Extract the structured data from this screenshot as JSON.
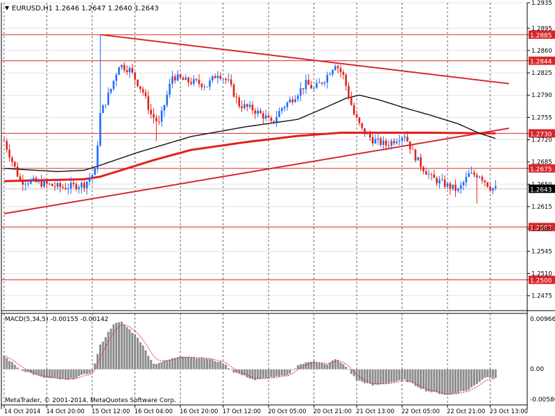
{
  "header": {
    "symbol_info": "EURUSD,H1  1.2646 1.2647 1.2640 1.2643"
  },
  "macd": {
    "label": "MACD(5,34,5) -0.00155 -0.00142",
    "scale": [
      "0.00966",
      "0.00",
      "-0.00586"
    ],
    "ylim": [
      -0.00586,
      0.00966
    ]
  },
  "footer": {
    "copyright": "MetaTrader, © 2001-2014, MetaQuotes Software Corp."
  },
  "colors": {
    "bull": "#1e6bff",
    "bear": "#e0201a",
    "level_line": "#d8262a",
    "ma_slow": "#e0201a",
    "ma_fast": "#111111",
    "histogram": "#8c8c8c",
    "signal": "#e0201a",
    "current_price_box": "#000000"
  },
  "chart_data": [
    {
      "type": "candlestick",
      "title": "EURUSD,H1",
      "ylim": [
        1.2455,
        1.2935
      ],
      "y_ticks": [
        "1.2935",
        "1.2895",
        "1.2860",
        "1.2825",
        "1.2790",
        "1.2755",
        "1.2720",
        "1.2685",
        "1.2650",
        "1.2615",
        "1.2580",
        "1.2545",
        "1.2510",
        "1.2475"
      ],
      "x_ticks": [
        "14 Oct 2014",
        "14 Oct 20:00",
        "15 Oct 12:00",
        "16 Oct 04:00",
        "16 Oct 20:00",
        "17 Oct 12:00",
        "20 Oct 05:00",
        "20 Oct 21:00",
        "21 Oct 13:00",
        "22 Oct 05:00",
        "22 Oct 21:00",
        "23 Oct 13:00"
      ],
      "horizontal_levels": [
        {
          "price": 1.2885,
          "label": "1.2885"
        },
        {
          "price": 1.2844,
          "label": "1.2844"
        },
        {
          "price": 1.273,
          "label": "1.2730"
        },
        {
          "price": 1.2675,
          "label": "1.2675"
        },
        {
          "price": 1.2583,
          "label": "1.2583"
        },
        {
          "price": 1.25,
          "label": "1.2500"
        }
      ],
      "current_price": {
        "price": 1.2643,
        "label": "1.2643"
      },
      "trendlines": [
        {
          "name": "upper",
          "from": {
            "bar": 36,
            "price": 1.2885
          },
          "to": {
            "bar": 189,
            "price": 1.2808
          }
        },
        {
          "name": "lower",
          "from": {
            "bar": 0,
            "price": 1.2604
          },
          "to": {
            "bar": 189,
            "price": 1.2738
          }
        }
      ],
      "price_anchors": [
        [
          0,
          1.2718
        ],
        [
          6,
          1.2655
        ],
        [
          10,
          1.2655
        ],
        [
          18,
          1.2648
        ],
        [
          22,
          1.2645
        ],
        [
          30,
          1.265
        ],
        [
          34,
          1.267
        ],
        [
          36,
          1.276
        ],
        [
          40,
          1.28
        ],
        [
          43,
          1.2838
        ],
        [
          47,
          1.283
        ],
        [
          52,
          1.2795
        ],
        [
          55,
          1.276
        ],
        [
          58,
          1.2745
        ],
        [
          63,
          1.282
        ],
        [
          68,
          1.2812
        ],
        [
          72,
          1.281
        ],
        [
          76,
          1.2805
        ],
        [
          80,
          1.2825
        ],
        [
          84,
          1.281
        ],
        [
          88,
          1.2775
        ],
        [
          93,
          1.2768
        ],
        [
          98,
          1.2755
        ],
        [
          100,
          1.2745
        ],
        [
          104,
          1.277
        ],
        [
          108,
          1.2785
        ],
        [
          113,
          1.2808
        ],
        [
          116,
          1.28
        ],
        [
          120,
          1.2815
        ],
        [
          124,
          1.284
        ],
        [
          127,
          1.282
        ],
        [
          131,
          1.276
        ],
        [
          134,
          1.2735
        ],
        [
          138,
          1.272
        ],
        [
          143,
          1.2712
        ],
        [
          147,
          1.2722
        ],
        [
          150,
          1.2728
        ],
        [
          153,
          1.27
        ],
        [
          156,
          1.268
        ],
        [
          160,
          1.266
        ],
        [
          165,
          1.265
        ],
        [
          170,
          1.264
        ],
        [
          174,
          1.2665
        ],
        [
          178,
          1.2665
        ],
        [
          182,
          1.2645
        ],
        [
          184,
          1.2643
        ]
      ],
      "ma_fast_anchors": [
        [
          0,
          1.2675
        ],
        [
          20,
          1.267
        ],
        [
          30,
          1.2672
        ],
        [
          36,
          1.268
        ],
        [
          50,
          1.27
        ],
        [
          70,
          1.2725
        ],
        [
          90,
          1.274
        ],
        [
          110,
          1.2752
        ],
        [
          120,
          1.277
        ],
        [
          128,
          1.2785
        ],
        [
          133,
          1.279
        ],
        [
          140,
          1.2783
        ],
        [
          150,
          1.277
        ],
        [
          160,
          1.2758
        ],
        [
          170,
          1.2745
        ],
        [
          178,
          1.273
        ],
        [
          184,
          1.2722
        ]
      ],
      "ma_slow_anchors": [
        [
          0,
          1.2655
        ],
        [
          10,
          1.2656
        ],
        [
          20,
          1.2657
        ],
        [
          30,
          1.2658
        ],
        [
          36,
          1.2662
        ],
        [
          46,
          1.2675
        ],
        [
          56,
          1.2688
        ],
        [
          70,
          1.2704
        ],
        [
          90,
          1.2716
        ],
        [
          110,
          1.2726
        ],
        [
          126,
          1.2731
        ],
        [
          140,
          1.2731
        ],
        [
          160,
          1.2731
        ],
        [
          184,
          1.273
        ]
      ],
      "macd_histogram_anchors": [
        [
          0,
          0.0025
        ],
        [
          6,
          0.0
        ],
        [
          14,
          -0.0015
        ],
        [
          24,
          -0.002
        ],
        [
          33,
          -0.0005
        ],
        [
          36,
          0.0045
        ],
        [
          41,
          0.0085
        ],
        [
          44,
          0.0088
        ],
        [
          50,
          0.006
        ],
        [
          56,
          0.001
        ],
        [
          60,
          0.0015
        ],
        [
          66,
          0.0025
        ],
        [
          76,
          0.002
        ],
        [
          82,
          0.0012
        ],
        [
          86,
          -0.0005
        ],
        [
          94,
          -0.002
        ],
        [
          100,
          -0.0015
        ],
        [
          106,
          -0.0012
        ],
        [
          110,
          0.0008
        ],
        [
          116,
          0.0016
        ],
        [
          121,
          0.0008
        ],
        [
          124,
          0.002
        ],
        [
          128,
          0.0005
        ],
        [
          132,
          -0.002
        ],
        [
          138,
          -0.003
        ],
        [
          150,
          -0.002
        ],
        [
          158,
          -0.004
        ],
        [
          166,
          -0.0048
        ],
        [
          174,
          -0.0038
        ],
        [
          180,
          -0.0015
        ],
        [
          184,
          -0.0015
        ]
      ]
    }
  ]
}
